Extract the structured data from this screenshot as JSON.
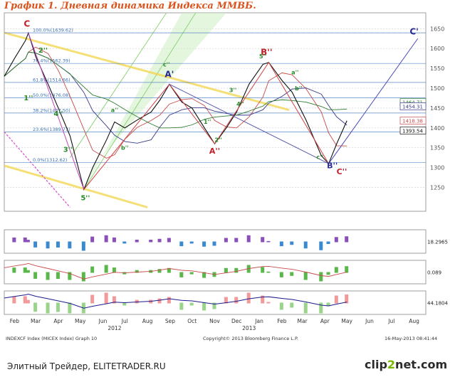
{
  "title": "График 1.   Дневная динамика Индекса ММВБ.",
  "footer": {
    "left": "Элитный Трейдер, ELITETRADER.RU",
    "logo_a": "clip",
    "logo_b": "2",
    "logo_c": "net.com"
  },
  "chart_data": {
    "type": "line",
    "title": "График 1.   Дневная динамика Индекса ММВБ.",
    "ylim": [
      1190,
      1690
    ],
    "y_ticks": [
      1250,
      1300,
      1350,
      1400,
      1450,
      1500,
      1550,
      1600,
      1650
    ],
    "x_ticks": [
      "Feb",
      "Mar",
      "Apr",
      "May",
      "Jun",
      "Jul",
      "Aug",
      "Sep",
      "Oct",
      "Nov",
      "Dec",
      "Jan",
      "Feb",
      "Mar",
      "Apr",
      "May",
      "Jun",
      "Jul",
      "Aug"
    ],
    "year_labels": [
      "2012",
      "2013"
    ],
    "fib_levels": [
      {
        "label": "100.0%(1639.62)",
        "value": 1639.62
      },
      {
        "label": "76.4%(1562.39)",
        "value": 1562.39
      },
      {
        "label": "61.8%(1514.66)",
        "value": 1514.66
      },
      {
        "label": "50.0%(1476.08)",
        "value": 1476.08
      },
      {
        "label": "38.2%(1437.50)",
        "value": 1437.5
      },
      {
        "label": "23.6%(1389.77)",
        "value": 1389.77
      },
      {
        "label": "0.0%(1312.62)",
        "value": 1312.62
      }
    ],
    "price_labels": [
      "1464.71",
      "1454.31",
      "1418.38",
      "1393.54"
    ],
    "wave_labels": [
      "C",
      "A'",
      "B''",
      "C'",
      "2''",
      "1''",
      "4''",
      "3''",
      "5''",
      "a''",
      "b''",
      "c''",
      "1''",
      "2''",
      "3''",
      "4''",
      "5''",
      "a''",
      "b''",
      "c''",
      "A''",
      "B''",
      "C''"
    ],
    "close": [
      {
        "x": "2012-02-01",
        "y": 1530
      },
      {
        "x": "2012-02-15",
        "y": 1575
      },
      {
        "x": "2012-03-01",
        "y": 1620
      },
      {
        "x": "2012-03-05",
        "y": 1639
      },
      {
        "x": "2012-03-15",
        "y": 1580
      },
      {
        "x": "2012-04-01",
        "y": 1510
      },
      {
        "x": "2012-04-15",
        "y": 1450
      },
      {
        "x": "2012-05-01",
        "y": 1380
      },
      {
        "x": "2012-05-20",
        "y": 1245
      },
      {
        "x": "2012-06-01",
        "y": 1300
      },
      {
        "x": "2012-06-20",
        "y": 1370
      },
      {
        "x": "2012-07-01",
        "y": 1415
      },
      {
        "x": "2012-07-15",
        "y": 1400
      },
      {
        "x": "2012-08-01",
        "y": 1420
      },
      {
        "x": "2012-08-20",
        "y": 1440
      },
      {
        "x": "2012-09-01",
        "y": 1470
      },
      {
        "x": "2012-09-14",
        "y": 1510
      },
      {
        "x": "2012-10-01",
        "y": 1465
      },
      {
        "x": "2012-10-15",
        "y": 1450
      },
      {
        "x": "2012-11-01",
        "y": 1400
      },
      {
        "x": "2012-11-15",
        "y": 1360
      },
      {
        "x": "2012-12-01",
        "y": 1400
      },
      {
        "x": "2012-12-15",
        "y": 1440
      },
      {
        "x": "2013-01-01",
        "y": 1510
      },
      {
        "x": "2013-01-20",
        "y": 1560
      },
      {
        "x": "2013-01-28",
        "y": 1565
      },
      {
        "x": "2013-02-15",
        "y": 1520
      },
      {
        "x": "2013-03-01",
        "y": 1490
      },
      {
        "x": "2013-03-20",
        "y": 1420
      },
      {
        "x": "2013-04-10",
        "y": 1330
      },
      {
        "x": "2013-04-20",
        "y": 1310
      },
      {
        "x": "2013-05-01",
        "y": 1360
      },
      {
        "x": "2013-05-15",
        "y": 1418
      }
    ],
    "projection_to": "C'",
    "indicator_panels": [
      "18.2965",
      "0.089",
      "44.1804"
    ],
    "footer_text": "INDEXCF Index (MICEX Index) Graph 10",
    "copyright": "Copyright© 2013 Bloomberg Finance L.P.",
    "date_stamp": "16-May-2013 08:41:44"
  }
}
